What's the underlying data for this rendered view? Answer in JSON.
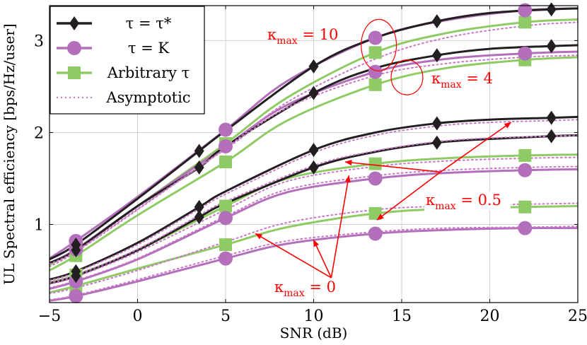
{
  "chart_data": {
    "type": "line",
    "title": "",
    "xlabel": "SNR (dB)",
    "ylabel": "UL Spectral efficiency [bps/Hz/user]",
    "xlim": [
      -5,
      25
    ],
    "ylim": [
      0.15,
      3.38
    ],
    "x_ticks": [
      -5,
      0,
      5,
      10,
      15,
      20,
      25
    ],
    "y_ticks": [
      1,
      2,
      3
    ],
    "grid": true,
    "legend": {
      "position": "top-left",
      "entries": [
        {
          "key": "tau_star",
          "label": "τ = τ*",
          "color": "#231f20",
          "marker": "diamond",
          "dash": false
        },
        {
          "key": "tau_k",
          "label": "τ = K",
          "color": "#b36fbb",
          "marker": "circle",
          "dash": false
        },
        {
          "key": "arbitrary",
          "label": "Arbitrary τ",
          "color": "#8fcb65",
          "marker": "square",
          "dash": false
        },
        {
          "key": "asymptotic",
          "label": "Asymptotic",
          "color": "#c87ac4",
          "marker": "none",
          "dash": true
        }
      ]
    },
    "groups": [
      {
        "annotation": "κmax = 10",
        "series": [
          {
            "kind": "tau_star",
            "x": [
              -5,
              -3.5,
              0,
              3.5,
              5,
              10,
              13.5,
              17,
              20,
              23.5,
              25
            ],
            "y": [
              0.62,
              0.78,
              1.28,
              1.8,
              2.02,
              2.72,
              3.03,
              3.21,
              3.3,
              3.34,
              3.35
            ],
            "markers_x": [
              -3.5,
              3.5,
              10,
              17,
              23.5
            ]
          },
          {
            "kind": "tau_k",
            "x": [
              -5,
              -3.5,
              0,
              5,
              8.5,
              13.5,
              17.5,
              22,
              25
            ],
            "y": [
              0.63,
              0.82,
              1.3,
              2.03,
              2.56,
              3.03,
              3.22,
              3.33,
              3.35
            ],
            "markers_x": [
              -3.5,
              5,
              13.5,
              22
            ]
          },
          {
            "kind": "arbitrary",
            "x": [
              -5,
              -3.5,
              0,
              5,
              8.5,
              13.5,
              17.5,
              22,
              25
            ],
            "y": [
              0.56,
              0.73,
              1.2,
              1.88,
              2.38,
              2.87,
              3.08,
              3.2,
              3.23
            ],
            "markers_x": [
              -3.5,
              5,
              13.5,
              22
            ]
          },
          {
            "kind": "asymptotic",
            "x": [
              -5,
              -3.5,
              0,
              5,
              8.5,
              13.5,
              17.5,
              22,
              25
            ],
            "y": [
              0.54,
              0.7,
              1.16,
              1.83,
              2.33,
              2.8,
              3.03,
              3.16,
              3.2
            ]
          }
        ]
      },
      {
        "annotation": "κmax = 4",
        "series": [
          {
            "kind": "tau_star",
            "x": [
              -5,
              -3.5,
              0,
              3.5,
              5,
              10,
              13.5,
              17,
              20,
              23.5,
              25
            ],
            "y": [
              0.58,
              0.72,
              1.2,
              1.62,
              1.85,
              2.43,
              2.7,
              2.84,
              2.91,
              2.94,
              2.95
            ],
            "markers_x": [
              -3.5,
              3.5,
              10,
              17,
              23.5
            ]
          },
          {
            "kind": "tau_k",
            "x": [
              -5,
              -3.5,
              0,
              5,
              8.5,
              13.5,
              17.5,
              22,
              25
            ],
            "y": [
              0.58,
              0.73,
              1.2,
              1.85,
              2.3,
              2.66,
              2.8,
              2.86,
              2.88
            ],
            "markers_x": [
              -3.5,
              5,
              13.5,
              22
            ]
          },
          {
            "kind": "arbitrary",
            "x": [
              -5,
              -3.5,
              0,
              5,
              8.5,
              13.5,
              17.5,
              22,
              25
            ],
            "y": [
              0.5,
              0.66,
              1.1,
              1.68,
              2.13,
              2.52,
              2.7,
              2.79,
              2.82
            ],
            "markers_x": [
              -3.5,
              5,
              13.5,
              22
            ]
          },
          {
            "kind": "asymptotic",
            "x": [
              -5,
              -3.5,
              0,
              5,
              8.5,
              13.5,
              17.5,
              22,
              25
            ],
            "y": [
              0.57,
              0.71,
              1.17,
              1.82,
              2.27,
              2.62,
              2.75,
              2.82,
              2.84
            ]
          }
        ]
      },
      {
        "annotation": "κmax = 0.5",
        "series": [
          {
            "kind": "tau_star",
            "x": [
              -5,
              -3.5,
              0,
              3.5,
              5,
              10,
              13.5,
              17,
              20,
              23.5,
              25
            ],
            "y": [
              0.4,
              0.49,
              0.8,
              1.19,
              1.36,
              1.81,
              2.0,
              2.1,
              2.14,
              2.16,
              2.17
            ],
            "markers_x": [
              -3.5,
              3.5,
              10,
              17,
              23.5
            ]
          },
          {
            "kind": "tau_star",
            "x": [
              -5,
              -3.5,
              0,
              3.5,
              5,
              10,
              13.5,
              17,
              20,
              23.5,
              25
            ],
            "y": [
              0.36,
              0.44,
              0.72,
              1.08,
              1.23,
              1.62,
              1.79,
              1.89,
              1.93,
              1.96,
              1.97
            ],
            "markers_x": [
              -3.5,
              3.5,
              10,
              17,
              23.5
            ]
          },
          {
            "kind": "arbitrary",
            "x": [
              -5,
              -3.5,
              0,
              5,
              8.5,
              13.5,
              17.5,
              22,
              25
            ],
            "y": [
              0.37,
              0.45,
              0.72,
              1.2,
              1.5,
              1.66,
              1.72,
              1.75,
              1.76
            ],
            "markers_x": [
              -3.5,
              5,
              13.5,
              22
            ]
          },
          {
            "kind": "tau_k",
            "x": [
              -5,
              -3.5,
              0,
              5,
              8.5,
              13.5,
              17.5,
              22,
              25
            ],
            "y": [
              0.3,
              0.38,
              0.62,
              1.07,
              1.35,
              1.5,
              1.56,
              1.59,
              1.6
            ],
            "markers_x": [
              -3.5,
              5,
              13.5,
              22
            ]
          },
          {
            "kind": "asymptotic",
            "x": [
              -5,
              -3.5,
              0,
              3.5,
              5,
              10,
              13.5,
              17,
              20,
              23.5,
              25
            ],
            "y": [
              0.39,
              0.48,
              0.78,
              1.17,
              1.33,
              1.78,
              1.97,
              2.07,
              2.11,
              2.13,
              2.14
            ]
          },
          {
            "kind": "asymptotic",
            "x": [
              -5,
              -3.5,
              0,
              3.5,
              5,
              10,
              13.5,
              17,
              20,
              23.5,
              25
            ],
            "y": [
              0.37,
              0.45,
              0.73,
              1.1,
              1.25,
              1.64,
              1.8,
              1.9,
              1.94,
              1.96,
              1.97
            ]
          },
          {
            "kind": "asymptotic",
            "x": [
              -5,
              -3.5,
              0,
              5,
              8.5,
              13.5,
              17.5,
              22,
              25
            ],
            "y": [
              0.35,
              0.43,
              0.7,
              1.16,
              1.47,
              1.63,
              1.69,
              1.72,
              1.73
            ]
          },
          {
            "kind": "asymptotic",
            "x": [
              -5,
              -3.5,
              0,
              5,
              8.5,
              13.5,
              17.5,
              22,
              25
            ],
            "y": [
              0.31,
              0.39,
              0.63,
              1.09,
              1.38,
              1.53,
              1.59,
              1.62,
              1.63
            ]
          }
        ]
      },
      {
        "annotation": "κmax = 0",
        "series": [
          {
            "kind": "arbitrary",
            "x": [
              -5,
              -3.5,
              0,
              5,
              8.5,
              13.5,
              17.5,
              22,
              25
            ],
            "y": [
              0.26,
              0.33,
              0.52,
              0.78,
              0.97,
              1.12,
              1.17,
              1.19,
              1.2
            ],
            "markers_x": [
              -3.5,
              5,
              13.5,
              22
            ]
          },
          {
            "kind": "tau_k",
            "x": [
              -5,
              -3.5,
              0,
              5,
              8.5,
              13.5,
              17.5,
              22,
              25
            ],
            "y": [
              0.17,
              0.22,
              0.38,
              0.63,
              0.79,
              0.9,
              0.94,
              0.96,
              0.96
            ],
            "markers_x": [
              -3.5,
              5,
              13.5,
              22
            ]
          },
          {
            "kind": "asymptotic",
            "x": [
              -5,
              -3.5,
              0,
              5,
              8.5,
              13.5,
              17.5,
              22,
              25
            ],
            "y": [
              0.25,
              0.31,
              0.5,
              0.81,
              1.02,
              1.16,
              1.2,
              1.22,
              1.23
            ]
          },
          {
            "kind": "asymptotic",
            "x": [
              -5,
              -3.5,
              0,
              5,
              8.5,
              13.5,
              17.5,
              22,
              25
            ],
            "y": [
              0.18,
              0.23,
              0.4,
              0.66,
              0.82,
              0.92,
              0.96,
              0.97,
              0.98
            ]
          }
        ]
      }
    ],
    "annotations": {
      "k10": {
        "text": "κmax = 10",
        "sym": "κ",
        "sub": "max",
        "rest": " = 10"
      },
      "k4": {
        "text": "κmax = 4",
        "sym": "κ",
        "sub": "max",
        "rest": " = 4"
      },
      "k05": {
        "text": "κmax = 0.5",
        "sym": "κ",
        "sub": "max",
        "rest": " = 0.5"
      },
      "k0": {
        "text": "κmax = 0",
        "sym": "κ",
        "sub": "max",
        "rest": " = 0"
      }
    },
    "annotation_color": "#ff0000",
    "ellipses": [
      {
        "for": "κmax = 10",
        "cx": 13.7,
        "cy": 2.95,
        "rx_data": 1.0,
        "ry_data": 0.28
      },
      {
        "for": "κmax = 4",
        "cx": 15.3,
        "cy": 2.6,
        "rx_data": 0.9,
        "ry_data": 0.19
      }
    ],
    "arrows": [
      {
        "from": [
          17.2,
          1.57
        ],
        "to": [
          21.2,
          2.11
        ]
      },
      {
        "from": [
          17.2,
          1.57
        ],
        "to": [
          13.6,
          1.05
        ]
      },
      {
        "from": [
          17.2,
          1.57
        ],
        "to": [
          11.8,
          1.68
        ]
      },
      {
        "from": [
          11.0,
          0.42
        ],
        "to": [
          6.7,
          0.9
        ]
      },
      {
        "from": [
          11.0,
          0.42
        ],
        "to": [
          10.0,
          0.83
        ]
      },
      {
        "from": [
          11.0,
          0.42
        ],
        "to": [
          12.0,
          1.53
        ]
      }
    ]
  }
}
